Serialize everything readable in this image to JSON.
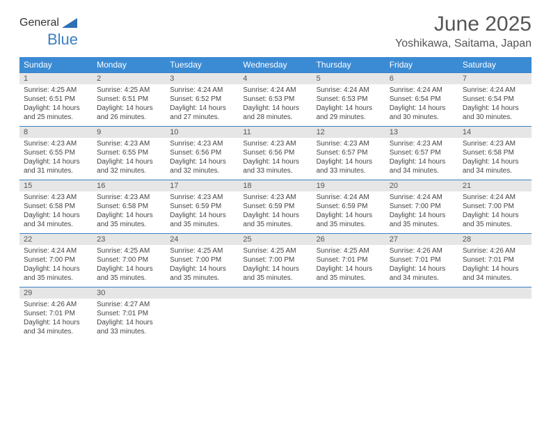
{
  "logo": {
    "part1": "General",
    "part2": "Blue",
    "tri_color": "#2f6fb3"
  },
  "title": "June 2025",
  "location": "Yoshikawa, Saitama, Japan",
  "colors": {
    "header_bg": "#3b8bd4",
    "header_text": "#ffffff",
    "daynum_bg": "#e6e6e6",
    "row_border": "#3b7fc4",
    "body_text": "#444444"
  },
  "weekdays": [
    "Sunday",
    "Monday",
    "Tuesday",
    "Wednesday",
    "Thursday",
    "Friday",
    "Saturday"
  ],
  "weeks": [
    [
      {
        "n": "1",
        "sr": "4:25 AM",
        "ss": "6:51 PM",
        "d": "14 hours and 25 minutes."
      },
      {
        "n": "2",
        "sr": "4:25 AM",
        "ss": "6:51 PM",
        "d": "14 hours and 26 minutes."
      },
      {
        "n": "3",
        "sr": "4:24 AM",
        "ss": "6:52 PM",
        "d": "14 hours and 27 minutes."
      },
      {
        "n": "4",
        "sr": "4:24 AM",
        "ss": "6:53 PM",
        "d": "14 hours and 28 minutes."
      },
      {
        "n": "5",
        "sr": "4:24 AM",
        "ss": "6:53 PM",
        "d": "14 hours and 29 minutes."
      },
      {
        "n": "6",
        "sr": "4:24 AM",
        "ss": "6:54 PM",
        "d": "14 hours and 30 minutes."
      },
      {
        "n": "7",
        "sr": "4:24 AM",
        "ss": "6:54 PM",
        "d": "14 hours and 30 minutes."
      }
    ],
    [
      {
        "n": "8",
        "sr": "4:23 AM",
        "ss": "6:55 PM",
        "d": "14 hours and 31 minutes."
      },
      {
        "n": "9",
        "sr": "4:23 AM",
        "ss": "6:55 PM",
        "d": "14 hours and 32 minutes."
      },
      {
        "n": "10",
        "sr": "4:23 AM",
        "ss": "6:56 PM",
        "d": "14 hours and 32 minutes."
      },
      {
        "n": "11",
        "sr": "4:23 AM",
        "ss": "6:56 PM",
        "d": "14 hours and 33 minutes."
      },
      {
        "n": "12",
        "sr": "4:23 AM",
        "ss": "6:57 PM",
        "d": "14 hours and 33 minutes."
      },
      {
        "n": "13",
        "sr": "4:23 AM",
        "ss": "6:57 PM",
        "d": "14 hours and 34 minutes."
      },
      {
        "n": "14",
        "sr": "4:23 AM",
        "ss": "6:58 PM",
        "d": "14 hours and 34 minutes."
      }
    ],
    [
      {
        "n": "15",
        "sr": "4:23 AM",
        "ss": "6:58 PM",
        "d": "14 hours and 34 minutes."
      },
      {
        "n": "16",
        "sr": "4:23 AM",
        "ss": "6:58 PM",
        "d": "14 hours and 35 minutes."
      },
      {
        "n": "17",
        "sr": "4:23 AM",
        "ss": "6:59 PM",
        "d": "14 hours and 35 minutes."
      },
      {
        "n": "18",
        "sr": "4:23 AM",
        "ss": "6:59 PM",
        "d": "14 hours and 35 minutes."
      },
      {
        "n": "19",
        "sr": "4:24 AM",
        "ss": "6:59 PM",
        "d": "14 hours and 35 minutes."
      },
      {
        "n": "20",
        "sr": "4:24 AM",
        "ss": "7:00 PM",
        "d": "14 hours and 35 minutes."
      },
      {
        "n": "21",
        "sr": "4:24 AM",
        "ss": "7:00 PM",
        "d": "14 hours and 35 minutes."
      }
    ],
    [
      {
        "n": "22",
        "sr": "4:24 AM",
        "ss": "7:00 PM",
        "d": "14 hours and 35 minutes."
      },
      {
        "n": "23",
        "sr": "4:25 AM",
        "ss": "7:00 PM",
        "d": "14 hours and 35 minutes."
      },
      {
        "n": "24",
        "sr": "4:25 AM",
        "ss": "7:00 PM",
        "d": "14 hours and 35 minutes."
      },
      {
        "n": "25",
        "sr": "4:25 AM",
        "ss": "7:00 PM",
        "d": "14 hours and 35 minutes."
      },
      {
        "n": "26",
        "sr": "4:25 AM",
        "ss": "7:01 PM",
        "d": "14 hours and 35 minutes."
      },
      {
        "n": "27",
        "sr": "4:26 AM",
        "ss": "7:01 PM",
        "d": "14 hours and 34 minutes."
      },
      {
        "n": "28",
        "sr": "4:26 AM",
        "ss": "7:01 PM",
        "d": "14 hours and 34 minutes."
      }
    ],
    [
      {
        "n": "29",
        "sr": "4:26 AM",
        "ss": "7:01 PM",
        "d": "14 hours and 34 minutes."
      },
      {
        "n": "30",
        "sr": "4:27 AM",
        "ss": "7:01 PM",
        "d": "14 hours and 33 minutes."
      },
      null,
      null,
      null,
      null,
      null
    ]
  ],
  "labels": {
    "sunrise": "Sunrise:",
    "sunset": "Sunset:",
    "daylight": "Daylight:"
  }
}
